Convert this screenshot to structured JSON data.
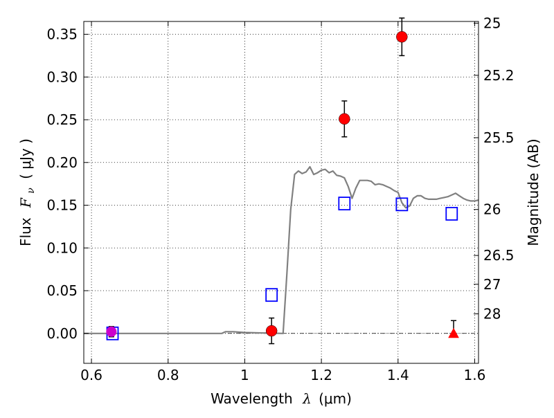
{
  "chart_data": {
    "type": "scatter",
    "xlabel_text": "Wavelength",
    "xlabel_symbol": "λ",
    "xlabel_unit": "(μm)",
    "ylabel_text": "Flux",
    "ylabel_symbol": "F",
    "ylabel_subscript": "ν",
    "ylabel_unit": "( μJy )",
    "y2label": "Magnitude (AB)",
    "xlim": [
      0.58,
      1.61
    ],
    "ylim": [
      -0.035,
      0.365
    ],
    "grid": true,
    "x_ticks": [
      0.6,
      0.8,
      1.0,
      1.2,
      1.4,
      1.6
    ],
    "x_tick_labels": [
      "0.6",
      "0.8",
      "1",
      "1.2",
      "1.4",
      "1.6"
    ],
    "y_ticks": [
      0.0,
      0.05,
      0.1,
      0.15,
      0.2,
      0.25,
      0.3,
      0.35
    ],
    "y_tick_labels": [
      "0.00",
      "0.05",
      "0.10",
      "0.15",
      "0.20",
      "0.25",
      "0.30",
      "0.35"
    ],
    "y2_ticks": [
      {
        "flux": 0.363,
        "label": "25"
      },
      {
        "flux": 0.302,
        "label": "25.2"
      },
      {
        "flux": 0.229,
        "label": "25.5"
      },
      {
        "flux": 0.145,
        "label": "26"
      },
      {
        "flux": 0.0912,
        "label": "26.5"
      },
      {
        "flux": 0.0575,
        "label": "27"
      },
      {
        "flux": 0.0229,
        "label": "28"
      }
    ],
    "model_sed": {
      "color": "#808080",
      "x": [
        0.58,
        0.94,
        0.95,
        0.97,
        1.0,
        1.1,
        1.11,
        1.12,
        1.13,
        1.14,
        1.15,
        1.16,
        1.17,
        1.18,
        1.19,
        1.2,
        1.21,
        1.22,
        1.23,
        1.24,
        1.25,
        1.26,
        1.27,
        1.28,
        1.29,
        1.3,
        1.31,
        1.32,
        1.33,
        1.34,
        1.35,
        1.36,
        1.37,
        1.38,
        1.39,
        1.4,
        1.41,
        1.42,
        1.43,
        1.44,
        1.45,
        1.46,
        1.47,
        1.48,
        1.49,
        1.5,
        1.51,
        1.52,
        1.53,
        1.54,
        1.55,
        1.56,
        1.57,
        1.58,
        1.59,
        1.6,
        1.61
      ],
      "y": [
        0.0,
        0.0,
        0.002,
        0.002,
        0.001,
        0.0,
        0.07,
        0.145,
        0.186,
        0.19,
        0.187,
        0.189,
        0.195,
        0.186,
        0.188,
        0.191,
        0.192,
        0.188,
        0.19,
        0.185,
        0.184,
        0.182,
        0.172,
        0.158,
        0.17,
        0.179,
        0.179,
        0.179,
        0.178,
        0.174,
        0.175,
        0.174,
        0.172,
        0.17,
        0.167,
        0.165,
        0.153,
        0.147,
        0.149,
        0.158,
        0.161,
        0.161,
        0.158,
        0.157,
        0.157,
        0.157,
        0.158,
        0.159,
        0.16,
        0.162,
        0.164,
        0.161,
        0.158,
        0.156,
        0.155,
        0.155,
        0.156
      ]
    },
    "model_photometry": {
      "marker": "open-square",
      "color": "#0000ff",
      "points": [
        {
          "x": 0.655,
          "y": 0.0
        },
        {
          "x": 1.07,
          "y": 0.045
        },
        {
          "x": 1.26,
          "y": 0.152
        },
        {
          "x": 1.41,
          "y": 0.151
        },
        {
          "x": 1.54,
          "y": 0.14
        }
      ]
    },
    "observed": {
      "marker": "filled-circle",
      "color": "#ff0000",
      "points": [
        {
          "x": 1.07,
          "y": 0.003,
          "err": 0.015
        },
        {
          "x": 1.26,
          "y": 0.251,
          "err": 0.021
        },
        {
          "x": 1.41,
          "y": 0.347,
          "err": 0.022
        }
      ]
    },
    "observed_magenta": {
      "marker": "filled-circle",
      "color": "#cc00cc",
      "points": [
        {
          "x": 0.652,
          "y": 0.002,
          "err": 0.006
        }
      ]
    },
    "upper_limit": {
      "marker": "filled-triangle",
      "color": "#ff0000",
      "points": [
        {
          "x": 1.545,
          "y": 0.0,
          "err_up": 0.015
        }
      ]
    }
  }
}
